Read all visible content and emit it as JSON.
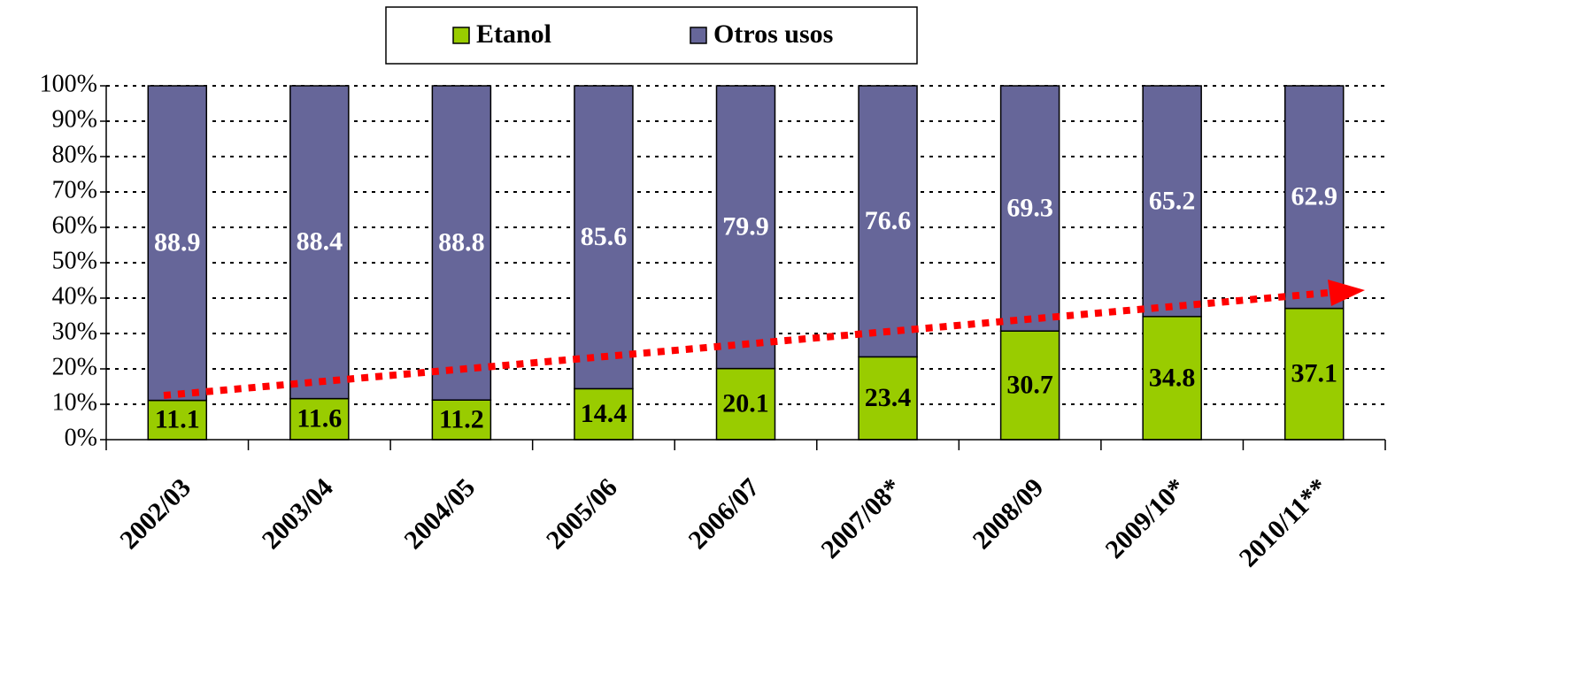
{
  "chart_data": {
    "type": "stacked_bar",
    "categories": [
      "2002/03",
      "2003/04",
      "2004/05",
      "2005/06",
      "2006/07",
      "2007/08*",
      "2008/09",
      "2009/10*",
      "2010/11**"
    ],
    "series": [
      {
        "name": "Etanol",
        "color": "#99cc00",
        "values": [
          11.1,
          11.6,
          11.2,
          14.4,
          20.1,
          23.4,
          30.7,
          34.8,
          37.1
        ]
      },
      {
        "name": "Otros usos",
        "color": "#666699",
        "values": [
          88.9,
          88.4,
          88.8,
          85.6,
          79.9,
          76.6,
          69.3,
          65.2,
          62.9
        ]
      }
    ],
    "ylim": [
      0,
      100
    ],
    "yticks": [
      {
        "value": 0,
        "label": "0%"
      },
      {
        "value": 10,
        "label": "10%"
      },
      {
        "value": 20,
        "label": "20%"
      },
      {
        "value": 30,
        "label": "30%"
      },
      {
        "value": 40,
        "label": "40%"
      },
      {
        "value": 50,
        "label": "50%"
      },
      {
        "value": 60,
        "label": "60%"
      },
      {
        "value": 70,
        "label": "70%"
      },
      {
        "value": 80,
        "label": "80%"
      },
      {
        "value": 90,
        "label": "90%"
      },
      {
        "value": 100,
        "label": "100%"
      }
    ],
    "grid": true,
    "legend": "top"
  }
}
